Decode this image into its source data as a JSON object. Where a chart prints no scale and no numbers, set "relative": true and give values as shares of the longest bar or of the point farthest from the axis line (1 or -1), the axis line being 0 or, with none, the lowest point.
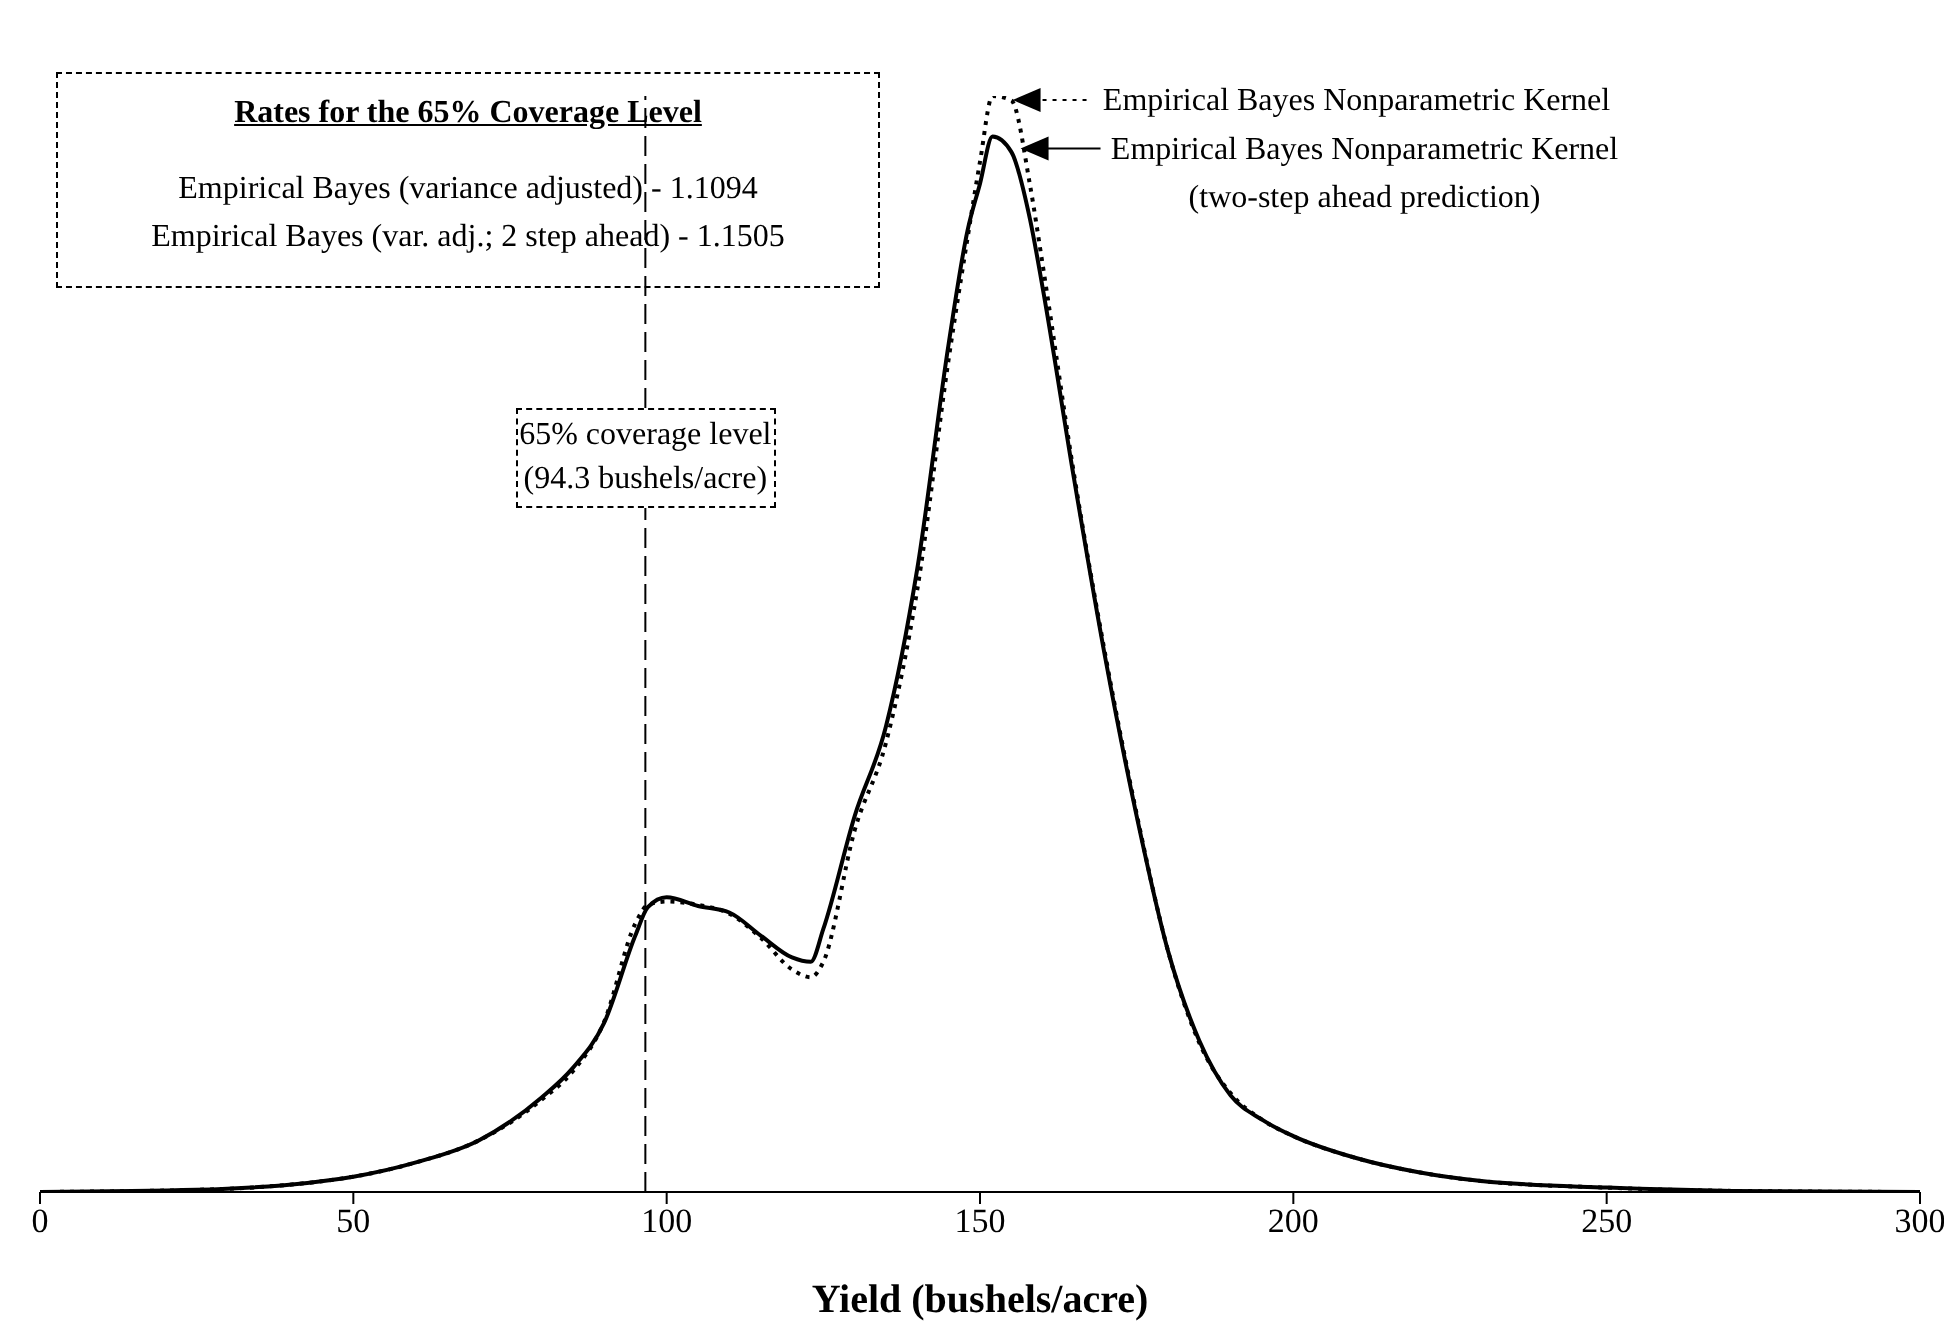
{
  "chart_data": {
    "type": "line",
    "relative": true,
    "xlabel": "Yield (bushels/acre)",
    "xlim": [
      0,
      300
    ],
    "xticks": [
      0,
      50,
      100,
      150,
      200,
      250,
      300
    ],
    "marker": "none",
    "legend": "top right",
    "x": [
      0,
      25,
      50,
      60,
      70,
      80,
      85,
      90,
      95,
      97,
      100,
      105,
      110,
      115,
      120,
      123,
      125,
      130,
      135,
      140,
      145,
      148,
      150,
      152,
      155,
      158,
      160,
      165,
      170,
      175,
      180,
      185,
      190,
      195,
      200,
      210,
      220,
      230,
      250,
      270,
      300
    ],
    "series": [
      {
        "name": "Empirical Bayes Nonparametric Kernel",
        "color": "#000000",
        "line_style": "dotted",
        "values": [
          0,
          0.002,
          0.014,
          0.027,
          0.047,
          0.084,
          0.11,
          0.155,
          0.245,
          0.262,
          0.265,
          0.262,
          0.254,
          0.232,
          0.203,
          0.196,
          0.21,
          0.33,
          0.41,
          0.55,
          0.76,
          0.87,
          0.94,
          1,
          0.996,
          0.918,
          0.846,
          0.655,
          0.49,
          0.345,
          0.22,
          0.136,
          0.09,
          0.066,
          0.051,
          0.031,
          0.018,
          0.01,
          0.004,
          0.001,
          0
        ]
      },
      {
        "name": "Empirical Bayes Nonparametric Kernel\n(two-step ahead prediction)",
        "color": "#000000",
        "line_style": "solid",
        "values": [
          0,
          0.002,
          0.014,
          0.027,
          0.047,
          0.086,
          0.113,
          0.154,
          0.234,
          0.26,
          0.269,
          0.261,
          0.255,
          0.234,
          0.214,
          0.21,
          0.24,
          0.343,
          0.425,
          0.569,
          0.774,
          0.877,
          0.92,
          0.963,
          0.949,
          0.887,
          0.825,
          0.651,
          0.487,
          0.343,
          0.22,
          0.138,
          0.088,
          0.066,
          0.051,
          0.031,
          0.018,
          0.01,
          0.004,
          0.001,
          0
        ]
      }
    ],
    "ref_lines": [
      {
        "axis": "x",
        "value": 96.6,
        "label": "65% coverage level\n(94.3 bushels/acre)",
        "line_style": "dashed",
        "color": "#000000"
      }
    ],
    "annotations": [
      "Rates for the 65% Coverage Level",
      "Empirical Bayes (variance adjusted) - 1.1094",
      "Empirical Bayes (var. adj.; 2 step ahead) - 1.1505"
    ]
  }
}
